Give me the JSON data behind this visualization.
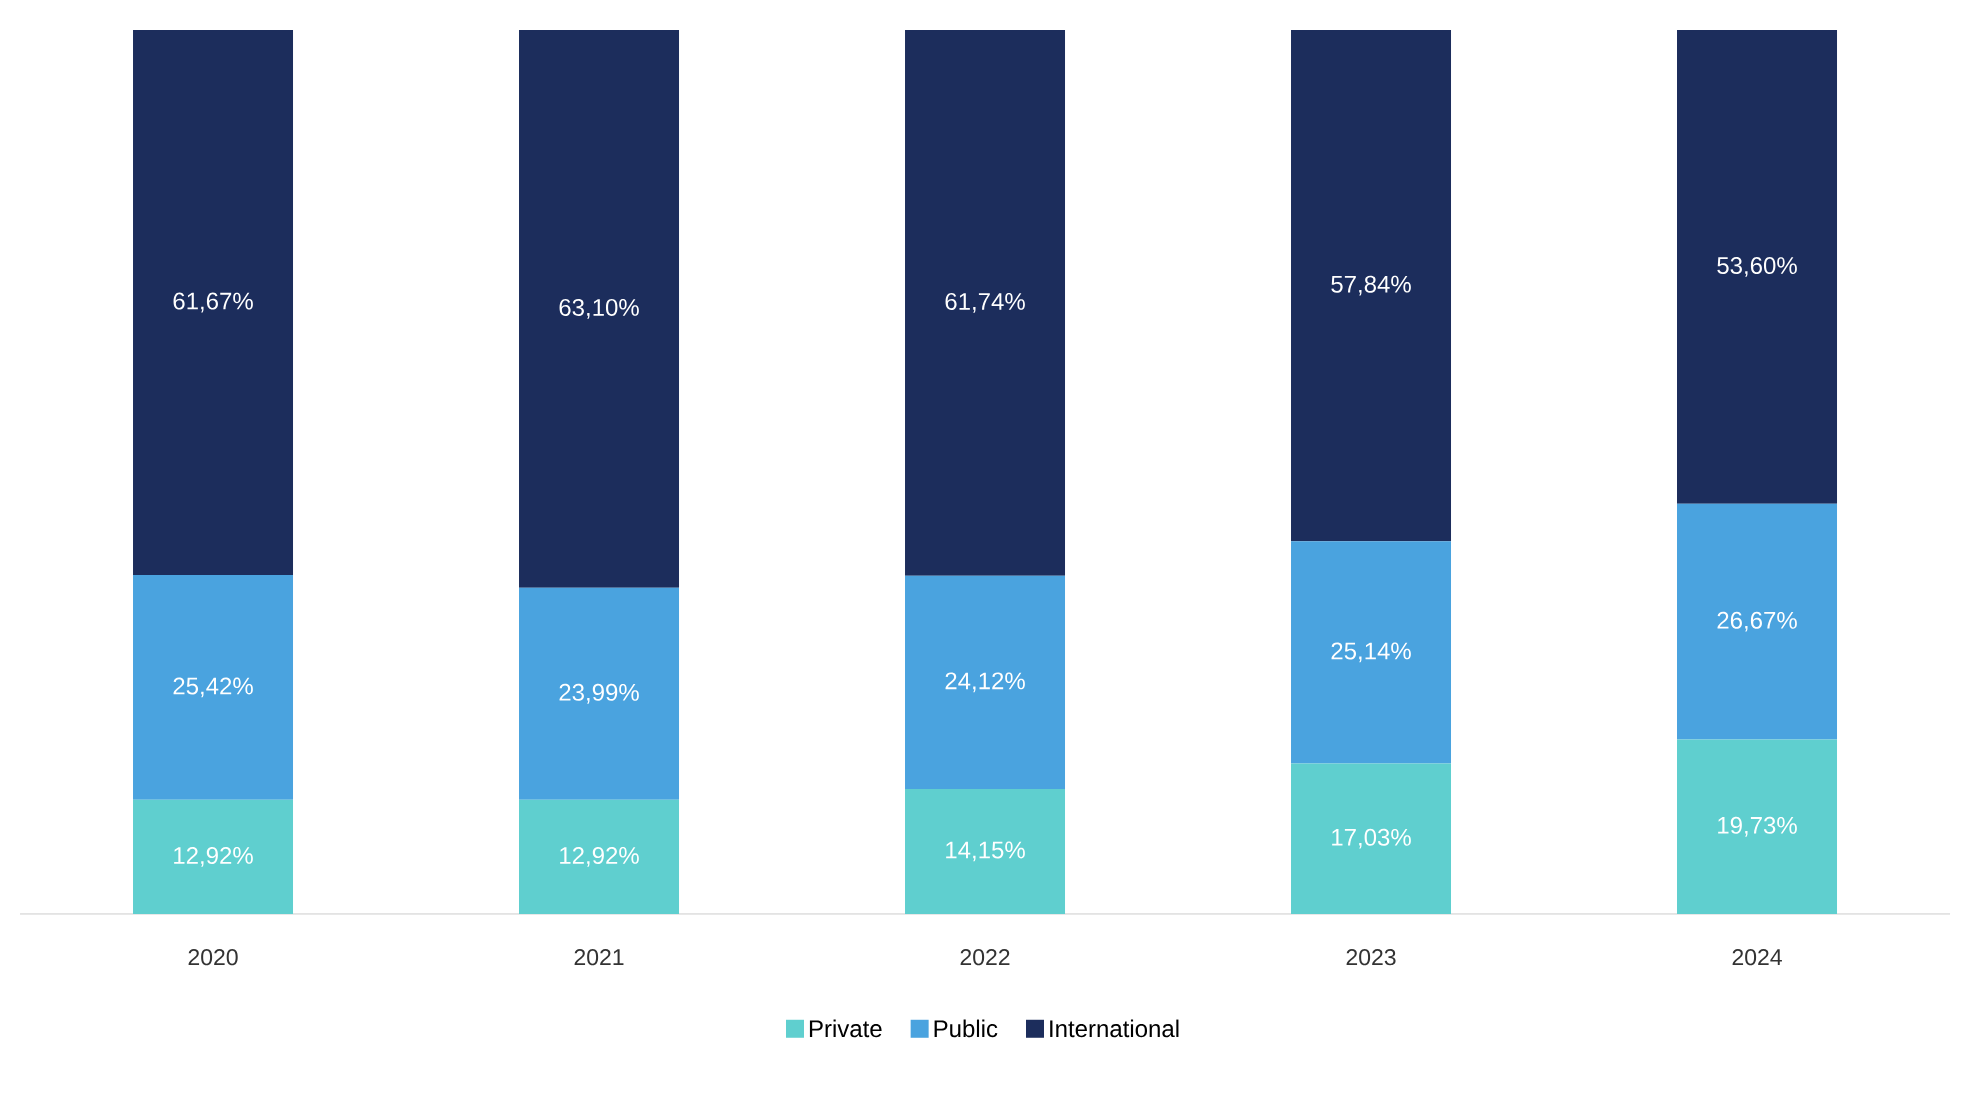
{
  "chart_data": {
    "type": "bar",
    "stacked": true,
    "categories": [
      "2020",
      "2021",
      "2022",
      "2023",
      "2024"
    ],
    "legend": "bottom",
    "series": [
      {
        "name": "Private",
        "color": "#5fcfcf",
        "values": [
          12.92,
          12.92,
          14.15,
          17.03,
          19.73
        ],
        "value_labels": [
          "12,92%",
          "12,92%",
          "14,15%",
          "17,03%",
          "19,73%"
        ]
      },
      {
        "name": "Public",
        "color": "#4aa3df",
        "values": [
          25.42,
          23.99,
          24.12,
          25.14,
          26.67
        ],
        "value_labels": [
          "25,42%",
          "23,99%",
          "24,12%",
          "25,14%",
          "26,67%"
        ]
      },
      {
        "name": "International",
        "color": "#1c2d5c",
        "values": [
          61.67,
          63.1,
          61.74,
          57.84,
          53.6
        ],
        "value_labels": [
          "61,67%",
          "63,10%",
          "61,74%",
          "57,84%",
          "53,60%"
        ]
      }
    ]
  }
}
